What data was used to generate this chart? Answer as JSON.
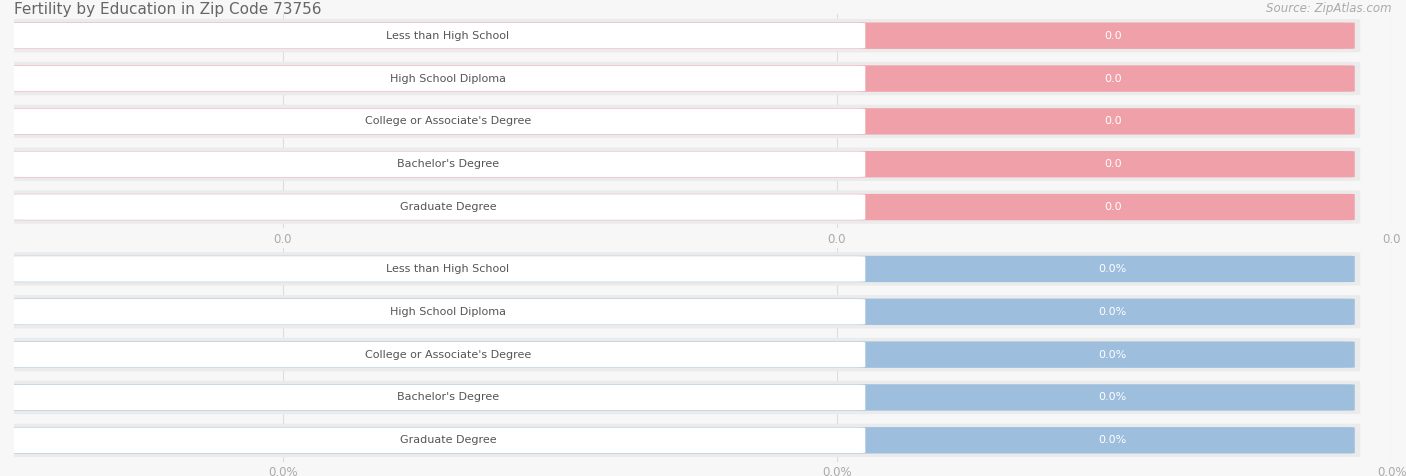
{
  "title": "Fertility by Education in Zip Code 73756",
  "source": "Source: ZipAtlas.com",
  "categories": [
    "Less than High School",
    "High School Diploma",
    "College or Associate's Degree",
    "Bachelor's Degree",
    "Graduate Degree"
  ],
  "values_top": [
    0.0,
    0.0,
    0.0,
    0.0,
    0.0
  ],
  "values_bottom": [
    0.0,
    0.0,
    0.0,
    0.0,
    0.0
  ],
  "bar_color_top": "#f0a0a8",
  "bar_color_bottom": "#9dbedd",
  "bg_color": "#f7f7f7",
  "row_bg_color": "#ebebeb",
  "white_label_bg": "#ffffff",
  "label_text_color": "#555555",
  "value_text_color": "#888888",
  "tick_label_color": "#aaaaaa",
  "title_color": "#666666",
  "source_color": "#aaaaaa",
  "grid_color": "#dddddd",
  "figsize": [
    14.06,
    4.76
  ],
  "dpi": 100
}
